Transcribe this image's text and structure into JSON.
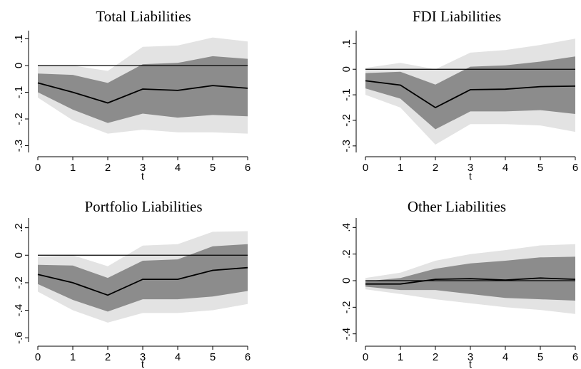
{
  "chart_data": [
    {
      "type": "area",
      "title": "Total Liabilities",
      "xlabel": "t",
      "ylabel": "",
      "x": [
        0,
        1,
        2,
        3,
        4,
        5,
        6
      ],
      "x_ticks": [
        "0",
        "1",
        "2",
        "3",
        "4",
        "5",
        "6"
      ],
      "y_ticks": [
        0.1,
        0,
        -0.1,
        -0.2,
        -0.3
      ],
      "y_tick_labels": [
        ".1",
        "0",
        "-.1",
        "-.2",
        "-.3"
      ],
      "ylim": [
        -0.32,
        0.12
      ],
      "reference_line": 0,
      "series": [
        {
          "role": "irf",
          "values": [
            -0.065,
            -0.1,
            -0.14,
            -0.088,
            -0.093,
            -0.075,
            -0.085
          ]
        },
        {
          "role": "inner_band_upper",
          "values": [
            -0.03,
            -0.035,
            -0.065,
            0.005,
            0.01,
            0.035,
            0.025
          ]
        },
        {
          "role": "inner_band_lower",
          "values": [
            -0.1,
            -0.165,
            -0.215,
            -0.18,
            -0.195,
            -0.185,
            -0.19
          ]
        },
        {
          "role": "outer_band_upper",
          "values": [
            0.0,
            0.0,
            -0.02,
            0.07,
            0.075,
            0.105,
            0.09
          ]
        },
        {
          "role": "outer_band_lower",
          "values": [
            -0.12,
            -0.205,
            -0.255,
            -0.24,
            -0.25,
            -0.25,
            -0.255
          ]
        }
      ]
    },
    {
      "type": "area",
      "title": "FDI Liabilities",
      "xlabel": "t",
      "ylabel": "",
      "x": [
        0,
        1,
        2,
        3,
        4,
        5,
        6
      ],
      "x_ticks": [
        "0",
        "1",
        "2",
        "3",
        "4",
        "5",
        "6"
      ],
      "y_ticks": [
        0.1,
        0,
        -0.1,
        -0.2,
        -0.3
      ],
      "y_tick_labels": [
        ".1",
        "0",
        "-.1",
        "-.2",
        "-.3"
      ],
      "ylim": [
        -0.32,
        0.14
      ],
      "reference_line": 0,
      "series": [
        {
          "role": "irf",
          "values": [
            -0.045,
            -0.062,
            -0.15,
            -0.08,
            -0.078,
            -0.068,
            -0.066
          ]
        },
        {
          "role": "inner_band_upper",
          "values": [
            -0.015,
            -0.01,
            -0.06,
            0.01,
            0.015,
            0.03,
            0.05
          ]
        },
        {
          "role": "inner_band_lower",
          "values": [
            -0.075,
            -0.115,
            -0.235,
            -0.165,
            -0.165,
            -0.16,
            -0.175
          ]
        },
        {
          "role": "outer_band_upper",
          "values": [
            0.005,
            0.025,
            0.0,
            0.065,
            0.075,
            0.095,
            0.12
          ]
        },
        {
          "role": "outer_band_lower",
          "values": [
            -0.1,
            -0.15,
            -0.295,
            -0.215,
            -0.215,
            -0.22,
            -0.245
          ]
        }
      ]
    },
    {
      "type": "area",
      "title": "Portfolio Liabilities",
      "xlabel": "t",
      "ylabel": "",
      "x": [
        0,
        1,
        2,
        3,
        4,
        5,
        6
      ],
      "x_ticks": [
        "0",
        "1",
        "2",
        "3",
        "4",
        "5",
        "6"
      ],
      "y_ticks": [
        0.2,
        0,
        -0.2,
        -0.4,
        -0.6
      ],
      "y_tick_labels": [
        ".2",
        "0",
        "-.2",
        "-.4",
        "-.6"
      ],
      "ylim": [
        -0.62,
        0.25
      ],
      "reference_line": 0,
      "series": [
        {
          "role": "irf",
          "values": [
            -0.14,
            -0.2,
            -0.29,
            -0.175,
            -0.175,
            -0.11,
            -0.09
          ]
        },
        {
          "role": "inner_band_upper",
          "values": [
            -0.07,
            -0.075,
            -0.165,
            -0.04,
            -0.03,
            0.065,
            0.08
          ]
        },
        {
          "role": "inner_band_lower",
          "values": [
            -0.21,
            -0.325,
            -0.41,
            -0.32,
            -0.32,
            -0.3,
            -0.26
          ]
        },
        {
          "role": "outer_band_upper",
          "values": [
            -0.01,
            0.0,
            -0.08,
            0.07,
            0.08,
            0.17,
            0.175
          ]
        },
        {
          "role": "outer_band_lower",
          "values": [
            -0.265,
            -0.4,
            -0.49,
            -0.42,
            -0.42,
            -0.4,
            -0.355
          ]
        }
      ]
    },
    {
      "type": "area",
      "title": "Other Liabilities",
      "xlabel": "t",
      "ylabel": "",
      "x": [
        0,
        1,
        2,
        3,
        4,
        5,
        6
      ],
      "x_ticks": [
        "0",
        "1",
        "2",
        "3",
        "4",
        "5",
        "6"
      ],
      "y_ticks": [
        0.4,
        0.2,
        0,
        -0.2,
        -0.4
      ],
      "y_tick_labels": [
        ".4",
        ".2",
        "0",
        "-.2",
        "-.4"
      ],
      "ylim": [
        -0.45,
        0.45
      ],
      "reference_line": 0,
      "series": [
        {
          "role": "irf",
          "values": [
            -0.025,
            -0.025,
            0.01,
            0.015,
            0.005,
            0.02,
            0.01
          ]
        },
        {
          "role": "inner_band_upper",
          "values": [
            -0.005,
            0.02,
            0.09,
            0.13,
            0.15,
            0.175,
            0.18
          ]
        },
        {
          "role": "inner_band_lower",
          "values": [
            -0.045,
            -0.07,
            -0.07,
            -0.1,
            -0.13,
            -0.14,
            -0.15
          ]
        },
        {
          "role": "outer_band_upper",
          "values": [
            0.02,
            0.06,
            0.15,
            0.2,
            0.23,
            0.265,
            0.275
          ]
        },
        {
          "role": "outer_band_lower",
          "values": [
            -0.065,
            -0.1,
            -0.14,
            -0.17,
            -0.2,
            -0.22,
            -0.25
          ]
        }
      ]
    }
  ],
  "colors": {
    "outer_band": "#e3e3e3",
    "inner_band": "#8c8c8c",
    "irf_line": "#000000",
    "zero_line": "#000000",
    "axis": "#000000"
  }
}
